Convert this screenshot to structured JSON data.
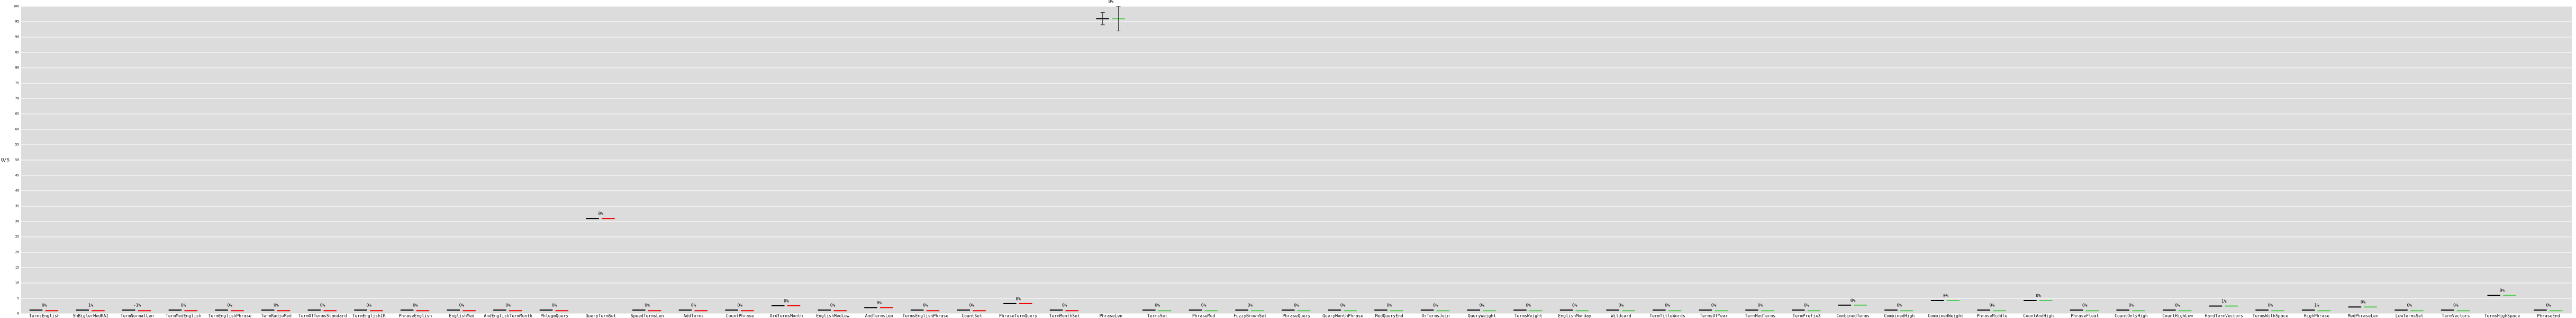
{
  "chart_data": {
    "type": "dashbar",
    "y_label": "Q/S",
    "categories": [
      "TermsEnglish",
      "ShBiglerMedRAI",
      "TermNormalLen",
      "TermMedEnglish",
      "TermEnglishPhrase",
      "TermRadioMed",
      "TermOfTermsStandard",
      "TermEnglishIR",
      "PhraseEnglish",
      "EnglishMed",
      "AndEnglishTermMonth",
      "PhlegmQuery",
      "QueryTermSet",
      "SpeedTermsLen",
      "AddTerms",
      "CountPhrase",
      "OrdTermsMonth",
      "EnglishMedLow",
      "AndTermsLen",
      "TermsEnglishPhrase",
      "CountSet",
      "PhraseTermQuery",
      "TermMonthSet",
      "PhraseLen",
      "TermsSet",
      "PhraseMed",
      "FuzzyBrownSet",
      "PhraseQuery",
      "QueryMonthPhrase",
      "MedQueryEnd",
      "OrTermsJoin",
      "QueryWeight",
      "TermsWeight",
      "EnglishMonday",
      "Wildcard",
      "TermTitleWords",
      "TermsOfYear",
      "TermMedTerms",
      "TermPrefix3",
      "CombinedTerms",
      "CombinedHigh",
      "CombinedWeight",
      "PhraseMiddle",
      "CountAndHigh",
      "PhraseFloat",
      "CountOnlyHigh",
      "CountHighLow",
      "HardTermVectors",
      "TermsWithSpace",
      "HighPhrase",
      "MedPhraseLen",
      "LowTermsSet",
      "TermVectors",
      "TermsHighSpace",
      "PhraseEnd"
    ],
    "series": [
      {
        "color": "#000000",
        "values": [
          1.2,
          1.2,
          1.2,
          1.2,
          1.2,
          1.2,
          1.2,
          1.2,
          1.2,
          1.2,
          1.2,
          1.2,
          31,
          1.2,
          1.2,
          1.2,
          2.6,
          1.2,
          2,
          1.2,
          1.2,
          3.3,
          1.2,
          96,
          1.2,
          1.2,
          1.2,
          1.2,
          1.2,
          1.2,
          1.2,
          1.2,
          1.2,
          1.2,
          1.2,
          1.2,
          1.2,
          1.2,
          1.2,
          2.8,
          1.2,
          4.3,
          1.2,
          4.3,
          1.2,
          1.2,
          1.2,
          2.5,
          1.2,
          1.2,
          2.2,
          1.2,
          1.2,
          6,
          1.2
        ],
        "errors": [
          null,
          null,
          null,
          null,
          null,
          null,
          null,
          null,
          null,
          null,
          null,
          null,
          null,
          null,
          null,
          null,
          null,
          null,
          null,
          null,
          null,
          null,
          null,
          2,
          null,
          null,
          null,
          null,
          null,
          null,
          null,
          null,
          null,
          null,
          null,
          null,
          null,
          null,
          null,
          null,
          null,
          null,
          null,
          null,
          null,
          null,
          null,
          null,
          null,
          null,
          null,
          null,
          null,
          null,
          null
        ]
      },
      {
        "color": "#ee0000",
        "values": [
          1,
          1,
          1,
          1,
          1,
          1,
          1,
          1,
          1,
          1,
          1,
          1,
          31,
          1,
          1,
          1,
          2.6,
          1,
          2,
          1,
          1,
          3.3,
          1,
          null,
          null,
          null,
          null,
          null,
          null,
          null,
          null,
          null,
          null,
          null,
          null,
          null,
          null,
          null,
          null,
          null,
          null,
          null,
          null,
          null,
          null,
          null,
          null,
          null,
          null,
          null,
          null,
          null,
          null,
          null,
          null
        ]
      },
      {
        "color": "#55cc55",
        "values": [
          null,
          null,
          null,
          null,
          null,
          null,
          null,
          null,
          null,
          null,
          null,
          null,
          null,
          null,
          null,
          null,
          null,
          null,
          null,
          null,
          null,
          null,
          null,
          96,
          1,
          1,
          1,
          1,
          1,
          1,
          1,
          1,
          1,
          1,
          1,
          1,
          1,
          1,
          1,
          2.8,
          1,
          4.3,
          1,
          4.3,
          1,
          1,
          1,
          2.5,
          1,
          1,
          2.2,
          1,
          1,
          6,
          1
        ],
        "errors": [
          null,
          null,
          null,
          null,
          null,
          null,
          null,
          null,
          null,
          null,
          null,
          null,
          null,
          null,
          null,
          null,
          null,
          null,
          null,
          null,
          null,
          null,
          null,
          4,
          null,
          null,
          null,
          null,
          null,
          null,
          null,
          null,
          null,
          null,
          null,
          null,
          null,
          null,
          null,
          null,
          null,
          null,
          null,
          null,
          null,
          null,
          null,
          null,
          null,
          null,
          null,
          null,
          null,
          null,
          null
        ]
      }
    ],
    "annotations": [
      "0%",
      "1%",
      "-1%",
      "0%",
      "0%",
      "0%",
      "0%",
      "0%",
      "0%",
      "0%",
      "0%",
      "0%",
      "0%",
      "0%",
      "0%",
      "0%",
      "0%",
      "0%",
      "0%",
      "0%",
      "0%",
      "0%",
      "0%",
      "0%",
      "0%",
      "0%",
      "0%",
      "0%",
      "0%",
      "0%",
      "0%",
      "0%",
      "0%",
      "0%",
      "0%",
      "0%",
      "0%",
      "0%",
      "0%",
      "0%",
      "0%",
      "0%",
      "0%",
      "0%",
      "0%",
      "0%",
      "0%",
      "1%",
      "0%",
      "1%",
      "0%",
      "0%",
      "0%",
      "0%",
      "0%"
    ],
    "ylim": [
      0,
      100
    ],
    "yticks": [
      0,
      5,
      10,
      15,
      20,
      25,
      30,
      35,
      40,
      45,
      50,
      55,
      60,
      65,
      70,
      75,
      80,
      85,
      90,
      95,
      100
    ],
    "grid": true
  }
}
